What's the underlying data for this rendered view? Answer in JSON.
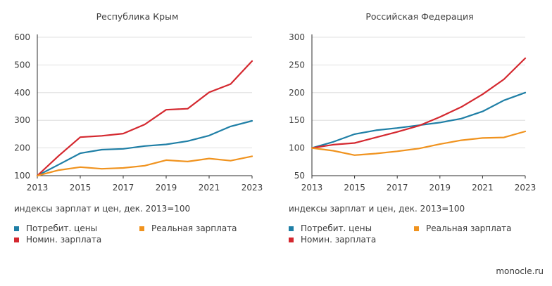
{
  "chart_data": [
    {
      "type": "line",
      "title": "Республика Крым",
      "x": [
        2013,
        2014,
        2015,
        2016,
        2017,
        2018,
        2019,
        2020,
        2021,
        2022,
        2023
      ],
      "xticks": [
        "2013",
        "2015",
        "2017",
        "2019",
        "2021",
        "2023"
      ],
      "ylim": [
        100,
        600
      ],
      "yticks": [
        100,
        200,
        300,
        400,
        500,
        600
      ],
      "series": [
        {
          "name": "Потребит. цены",
          "color": "#1f7fa6",
          "values": [
            100,
            140,
            181,
            194,
            197,
            207,
            213,
            225,
            245,
            278,
            298
          ]
        },
        {
          "name": "Номин. зарплата",
          "color": "#d4282f",
          "values": [
            100,
            172,
            239,
            244,
            252,
            285,
            338,
            342,
            401,
            431,
            514
          ]
        },
        {
          "name": "Реальная зарплата",
          "color": "#f0931f",
          "values": [
            100,
            120,
            131,
            125,
            128,
            136,
            156,
            151,
            162,
            154,
            170
          ]
        }
      ]
    },
    {
      "type": "line",
      "title": "Российская Федерация",
      "x": [
        2013,
        2014,
        2015,
        2016,
        2017,
        2018,
        2019,
        2020,
        2021,
        2022,
        2023
      ],
      "xticks": [
        "2013",
        "2015",
        "2017",
        "2019",
        "2021",
        "2023"
      ],
      "ylim": [
        50,
        300
      ],
      "yticks": [
        50,
        100,
        150,
        200,
        250,
        300
      ],
      "series": [
        {
          "name": "Потребит. цены",
          "color": "#1f7fa6",
          "values": [
            100,
            111,
            125,
            132,
            136,
            141,
            146,
            153,
            166,
            186,
            200
          ]
        },
        {
          "name": "Номин. зарплата",
          "color": "#d4282f",
          "values": [
            100,
            106,
            109,
            119,
            129,
            140,
            156,
            174,
            197,
            224,
            262
          ]
        },
        {
          "name": "Реальная зарплата",
          "color": "#f0931f",
          "values": [
            100,
            95,
            87,
            90,
            94,
            99,
            107,
            114,
            118,
            119,
            130
          ]
        }
      ]
    }
  ],
  "note": "индексы зарплат и цен, дек. 2013=100",
  "legend": {
    "cpi": "Потребит. цены",
    "real_wage": "Реальная зарплата",
    "nominal_wage": "Номин. зарплата"
  },
  "colors": {
    "cpi": "#1f7fa6",
    "real_wage": "#f0931f",
    "nominal_wage": "#d4282f"
  },
  "source": "monocle.ru"
}
